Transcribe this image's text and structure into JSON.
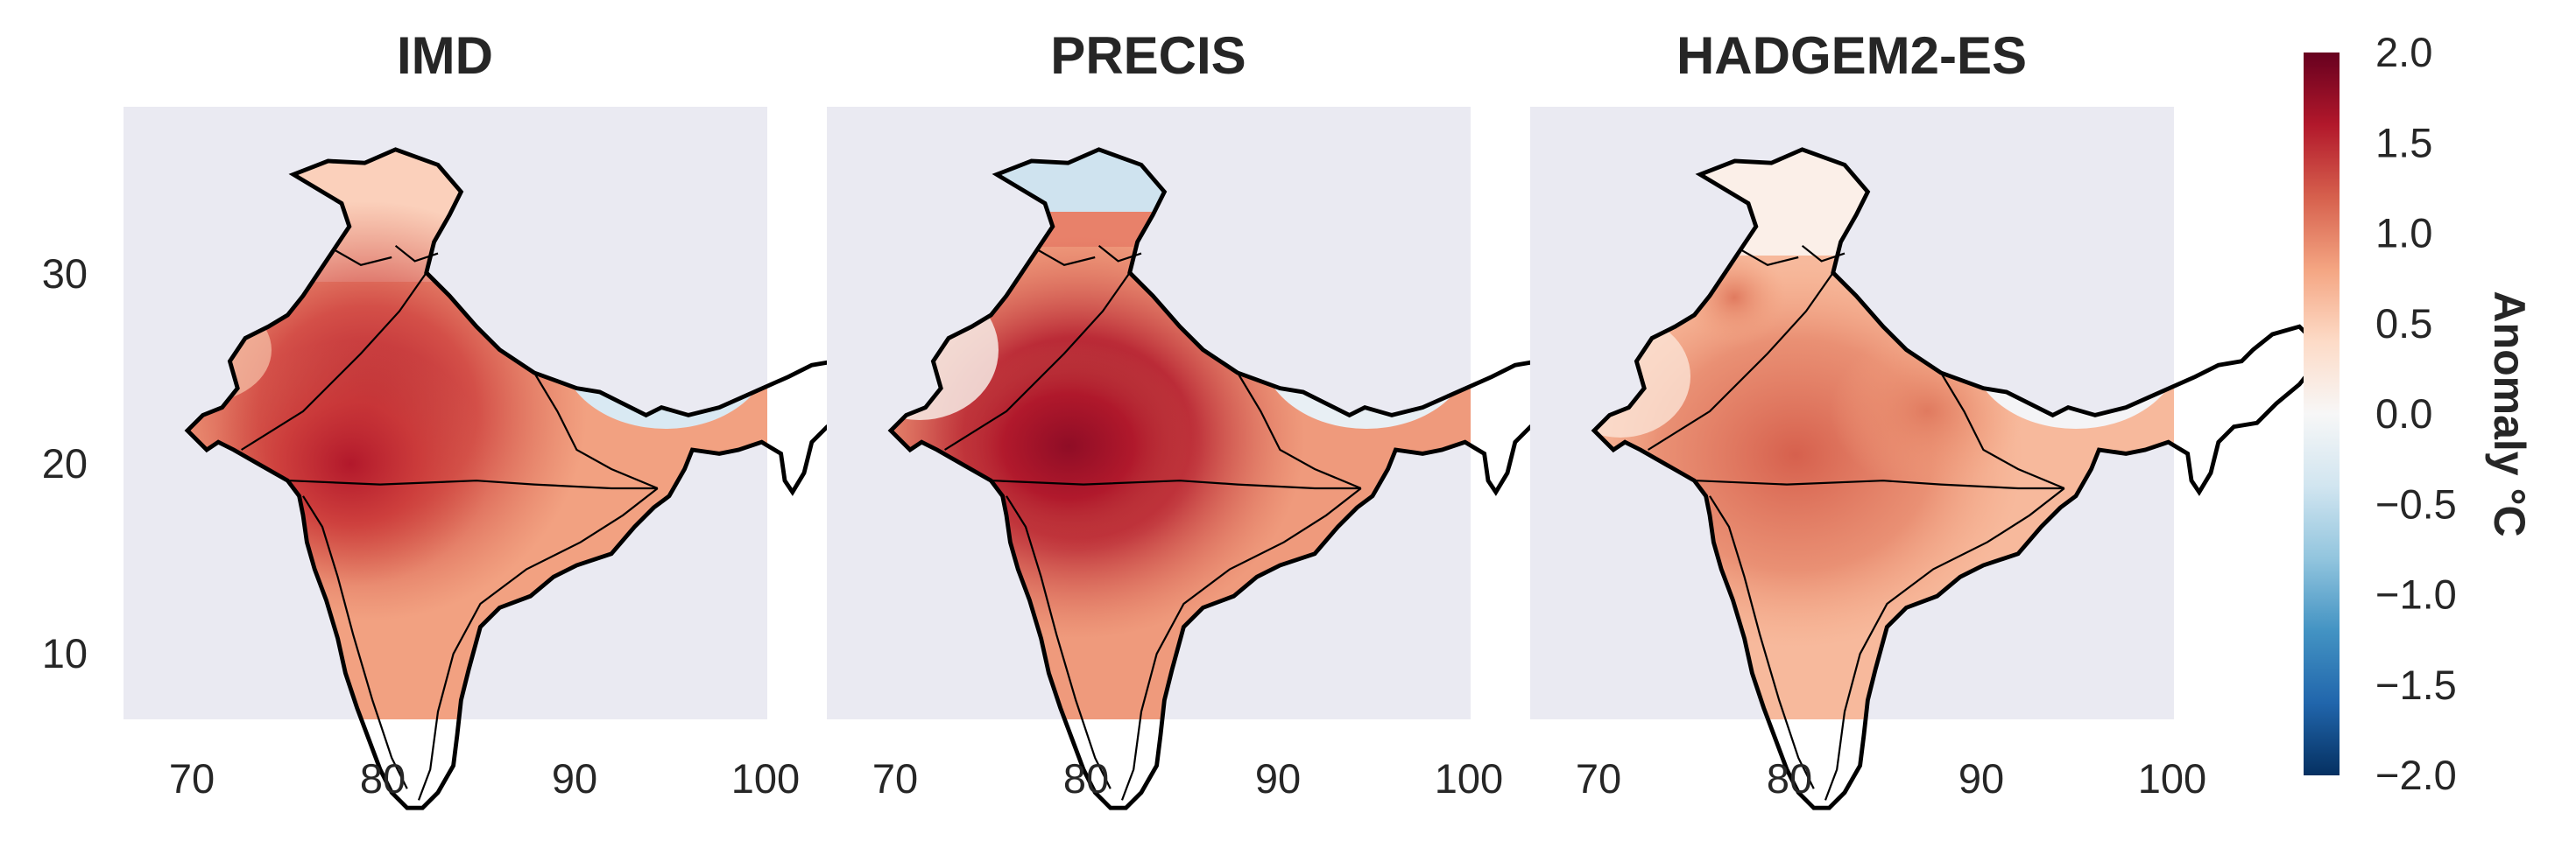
{
  "colors": {
    "panel_background": "#eaeaf2",
    "outline": "#000000",
    "colormap": "RdBu_r"
  },
  "chart_data": {
    "type": "heatmap",
    "subplots": [
      {
        "title": "IMD",
        "region": "India",
        "pattern": "strong warm core over central India; slight cool anomaly in northeast",
        "core_anomaly": 1.8
      },
      {
        "title": "PRECIS",
        "region": "India",
        "pattern": "strongest warming over central India; cool anomaly over Kashmir and northeast",
        "core_anomaly": 2.0
      },
      {
        "title": "HADGEM2-ES",
        "region": "India",
        "pattern": "moderate warming over central and east India; near zero in north and northeast",
        "core_anomaly": 1.1
      }
    ],
    "x_ticks": [
      "70",
      "80",
      "90",
      "100"
    ],
    "y_ticks": [
      "30",
      "20",
      "10"
    ],
    "xlim": [
      66,
      100
    ],
    "ylim": [
      6,
      39
    ],
    "colorbar": {
      "label": "Anomaly $^\\circ C$",
      "label_display": "Anomaly °C",
      "ticks": [
        "2.0",
        "1.5",
        "1.0",
        "0.5",
        "0.0",
        "−0.5",
        "−1.0",
        "−1.5",
        "−2.0"
      ],
      "range": [
        -2.0,
        2.0
      ]
    }
  }
}
